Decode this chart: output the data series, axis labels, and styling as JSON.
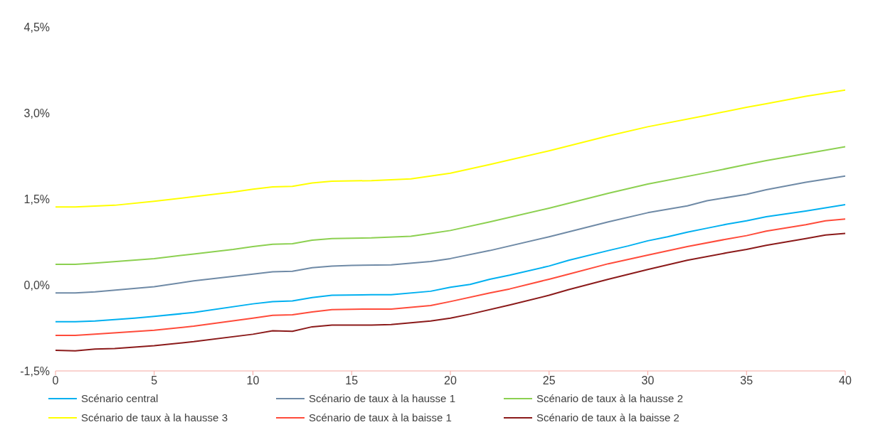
{
  "chart_data": {
    "type": "line",
    "xlim": [
      0,
      40
    ],
    "xticks": [
      0,
      5,
      10,
      15,
      20,
      25,
      30,
      35,
      40
    ],
    "ylim": [
      -1.5,
      4.5
    ],
    "yticks": [
      {
        "value": -1.5,
        "label": "-1,5%"
      },
      {
        "value": 0,
        "label": "0,0%"
      },
      {
        "value": 1.5,
        "label": "1,5%"
      },
      {
        "value": 3,
        "label": "3,0%"
      },
      {
        "value": 4.5,
        "label": "4,5%"
      }
    ],
    "grid": false,
    "legend": "bottom",
    "marker": "none",
    "line_style": "solid",
    "series": [
      {
        "name": "Scénario central",
        "color": "#00b0f0",
        "x": [
          0,
          1,
          2,
          4,
          5,
          7,
          10,
          11,
          12,
          13,
          14,
          16,
          17,
          19,
          20,
          21,
          22,
          23,
          25,
          26,
          28,
          29,
          30,
          31,
          32,
          33,
          34,
          35,
          36,
          38,
          40
        ],
        "values": [
          -0.64,
          -0.64,
          -0.63,
          -0.58,
          -0.55,
          -0.48,
          -0.33,
          -0.29,
          -0.28,
          -0.22,
          -0.18,
          -0.17,
          -0.17,
          -0.11,
          -0.04,
          0.01,
          0.1,
          0.17,
          0.33,
          0.43,
          0.6,
          0.68,
          0.77,
          0.84,
          0.92,
          0.99,
          1.06,
          1.12,
          1.19,
          1.29,
          1.4
        ]
      },
      {
        "name": "Scénario de taux à la hausse 1",
        "color": "#6f8aa6",
        "x": [
          0,
          1,
          2,
          5,
          7,
          10,
          11,
          12,
          13,
          14,
          15,
          17,
          19,
          20,
          22,
          25,
          28,
          30,
          32,
          33,
          35,
          36,
          38,
          40
        ],
        "values": [
          -0.14,
          -0.14,
          -0.12,
          -0.03,
          0.07,
          0.19,
          0.23,
          0.24,
          0.3,
          0.33,
          0.34,
          0.35,
          0.41,
          0.46,
          0.6,
          0.84,
          1.1,
          1.26,
          1.38,
          1.47,
          1.58,
          1.66,
          1.79,
          1.9
        ]
      },
      {
        "name": "Scénario de taux à la hausse 2",
        "color": "#8cd050",
        "x": [
          0,
          1,
          2,
          5,
          7,
          9,
          10,
          11,
          12,
          13,
          14,
          16,
          18,
          19,
          20,
          22,
          25,
          28,
          30,
          33,
          35,
          36,
          38,
          40
        ],
        "values": [
          0.36,
          0.36,
          0.38,
          0.46,
          0.54,
          0.62,
          0.67,
          0.71,
          0.72,
          0.78,
          0.81,
          0.82,
          0.85,
          0.9,
          0.95,
          1.1,
          1.34,
          1.6,
          1.76,
          1.96,
          2.1,
          2.17,
          2.29,
          2.41
        ]
      },
      {
        "name": "Scénario de taux à la hausse 3",
        "color": "#ffff00",
        "x": [
          0,
          1,
          3,
          5,
          7,
          9,
          10,
          11,
          12,
          13,
          14,
          16,
          18,
          19,
          20,
          22,
          25,
          28,
          30,
          33,
          35,
          36,
          38,
          40
        ],
        "values": [
          1.36,
          1.36,
          1.39,
          1.46,
          1.54,
          1.62,
          1.67,
          1.71,
          1.72,
          1.78,
          1.81,
          1.82,
          1.85,
          1.9,
          1.95,
          2.1,
          2.34,
          2.6,
          2.76,
          2.96,
          3.1,
          3.16,
          3.29,
          3.4
        ]
      },
      {
        "name": "Scénario de taux à la baisse 1",
        "color": "#ff4b3a",
        "x": [
          0,
          1,
          2,
          5,
          7,
          10,
          11,
          12,
          13,
          14,
          16,
          17,
          19,
          20,
          22,
          23,
          25,
          26,
          28,
          30,
          32,
          34,
          35,
          36,
          38,
          39,
          40
        ],
        "values": [
          -0.88,
          -0.88,
          -0.86,
          -0.79,
          -0.72,
          -0.58,
          -0.53,
          -0.52,
          -0.47,
          -0.43,
          -0.42,
          -0.42,
          -0.36,
          -0.29,
          -0.14,
          -0.07,
          0.1,
          0.19,
          0.37,
          0.52,
          0.67,
          0.8,
          0.86,
          0.94,
          1.05,
          1.12,
          1.15
        ]
      },
      {
        "name": "Scénario de taux à la baisse 2",
        "color": "#8b1a1a",
        "x": [
          0,
          1,
          2,
          3,
          5,
          7,
          10,
          11,
          12,
          13,
          14,
          16,
          17,
          19,
          20,
          21,
          23,
          25,
          26,
          28,
          30,
          32,
          34,
          35,
          36,
          38,
          39,
          40
        ],
        "values": [
          -1.14,
          -1.15,
          -1.12,
          -1.11,
          -1.06,
          -0.99,
          -0.86,
          -0.8,
          -0.81,
          -0.73,
          -0.7,
          -0.7,
          -0.69,
          -0.63,
          -0.58,
          -0.51,
          -0.35,
          -0.18,
          -0.08,
          0.1,
          0.27,
          0.43,
          0.56,
          0.62,
          0.69,
          0.81,
          0.87,
          0.9
        ]
      }
    ]
  }
}
